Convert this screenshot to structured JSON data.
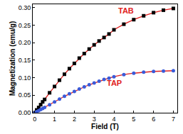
{
  "chart_data": {
    "type": "scatter",
    "x_label": "Field (T)",
    "y_label": "Magnetization (emu/g)",
    "x": [
      0,
      0.1,
      0.2,
      0.3,
      0.4,
      0.5,
      0.75,
      1,
      1.25,
      1.5,
      1.75,
      2,
      2.25,
      2.5,
      2.75,
      3,
      3.25,
      3.5,
      3.75,
      4,
      4.5,
      5,
      5.5,
      6,
      6.5,
      7
    ],
    "series": [
      {
        "type": "scatter",
        "marker": "square",
        "color": "#000000",
        "values": [
          0,
          0.008,
          0.015,
          0.023,
          0.031,
          0.038,
          0.057,
          0.075,
          0.093,
          0.11,
          0.126,
          0.141,
          0.156,
          0.169,
          0.182,
          0.194,
          0.205,
          0.215,
          0.225,
          0.237,
          0.253,
          0.266,
          0.277,
          0.286,
          0.293,
          0.298
        ]
      },
      {
        "type": "line",
        "line_style": "solid",
        "color": "#e02020",
        "values": [
          0,
          0.008,
          0.015,
          0.023,
          0.031,
          0.038,
          0.057,
          0.075,
          0.093,
          0.11,
          0.126,
          0.141,
          0.156,
          0.169,
          0.182,
          0.194,
          0.205,
          0.215,
          0.225,
          0.237,
          0.253,
          0.266,
          0.277,
          0.286,
          0.293,
          0.298
        ]
      },
      {
        "type": "scatter",
        "marker": "circle",
        "color": "#3a5bd9",
        "values": [
          0,
          0.003,
          0.006,
          0.009,
          0.012,
          0.015,
          0.023,
          0.031,
          0.039,
          0.047,
          0.054,
          0.061,
          0.068,
          0.074,
          0.08,
          0.085,
          0.09,
          0.095,
          0.099,
          0.103,
          0.109,
          0.113,
          0.116,
          0.118,
          0.119,
          0.12
        ]
      },
      {
        "type": "line",
        "line_style": "solid",
        "color": "#e02020",
        "values": [
          0,
          0.003,
          0.006,
          0.009,
          0.012,
          0.015,
          0.023,
          0.031,
          0.039,
          0.047,
          0.054,
          0.061,
          0.068,
          0.074,
          0.08,
          0.085,
          0.09,
          0.095,
          0.099,
          0.103,
          0.109,
          0.113,
          0.116,
          0.118,
          0.119,
          0.12
        ]
      }
    ],
    "annotations": [
      {
        "text": "TAB",
        "x": 4.6,
        "y": 0.292
      },
      {
        "text": "TAP",
        "x": 4.0,
        "y": 0.085
      }
    ],
    "xlim": [
      -0.1,
      7.2
    ],
    "xticks": [
      0,
      1,
      2,
      3,
      4,
      5,
      6,
      7
    ],
    "ylim": [
      0,
      0.31
    ],
    "yticks": [
      {
        "value": 0,
        "label": "0.00"
      },
      {
        "value": 0.05,
        "label": "0.05"
      },
      {
        "value": 0.1,
        "label": "0.10"
      },
      {
        "value": 0.15,
        "label": "0.15"
      },
      {
        "value": 0.2,
        "label": "0.20"
      },
      {
        "value": 0.25,
        "label": "0.25"
      },
      {
        "value": 0.3,
        "label": "0.30"
      }
    ],
    "grid": false
  }
}
